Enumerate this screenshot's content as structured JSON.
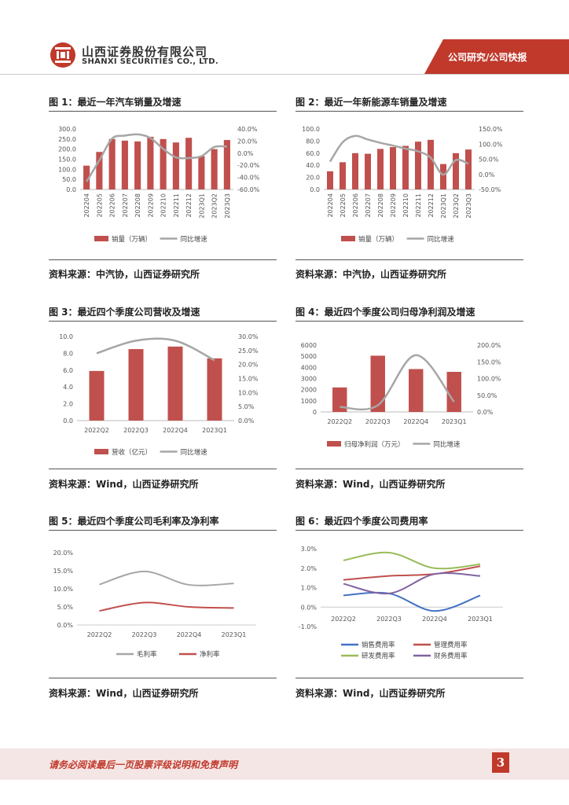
{
  "header": {
    "company_cn": "山西证券股份有限公司",
    "company_en": "SHANXI SECURITIES CO., LTD.",
    "tag": "公司研究/公司快报"
  },
  "figures": [
    {
      "title": "图 1：最近一年汽车销量及增速",
      "source": "资料来源：中汽协，山西证券研究所"
    },
    {
      "title": "图 2：最近一年新能源车销量及增速",
      "source": "资料来源：中汽协，山西证券研究所"
    },
    {
      "title": "图 3：最近四个季度公司营收及增速",
      "source": "资料来源：Wind，山西证券研究所"
    },
    {
      "title": "图 4：最近四个季度公司归母净利润及增速",
      "source": "资料来源：Wind，山西证券研究所"
    },
    {
      "title": "图 5：最近四个季度公司毛利率及净利率",
      "source": "资料来源：Wind，山西证券研究所"
    },
    {
      "title": "图 6：最近四个季度公司费用率",
      "source": "资料来源：Wind，山西证券研究所"
    }
  ],
  "footer": {
    "disclaimer": "请务必阅读最后一页股票评级说明和免责声明",
    "page": "3"
  },
  "colors": {
    "brand_red": "#c0392b",
    "bar": "#c0504d",
    "grey": "#a6a6a6",
    "blue": "#4472c4",
    "green": "#9bbb59",
    "purple": "#8064a2"
  },
  "chart_data": [
    {
      "type": "bar",
      "title": "最近一年汽车销量及增速",
      "categories": [
        "202204",
        "202205",
        "202206",
        "202207",
        "202208",
        "202209",
        "202210",
        "202211",
        "202212",
        "2023Q1",
        "2023Q2",
        "2023Q3"
      ],
      "series": [
        {
          "name": "销量（万辆）",
          "axis": "left",
          "values": [
            118,
            186,
            250,
            242,
            238,
            261,
            250,
            233,
            256,
            165,
            200,
            245
          ]
        },
        {
          "name": "同比增速",
          "axis": "right",
          "kind": "line",
          "values": [
            -47,
            -12,
            24,
            29,
            31,
            25,
            7,
            -7,
            -8,
            -5,
            10,
            11
          ]
        }
      ],
      "ylim_left": [
        0,
        300
      ],
      "yticks_left": [
        "300.0",
        "250.0",
        "200.0",
        "150.0",
        "100.0",
        "50.0",
        "0.0"
      ],
      "ylim_right": [
        -60,
        40
      ],
      "yticks_right": [
        "40.0%",
        "20.0%",
        "0.0%",
        "-20.0%",
        "-40.0%",
        "-60.0%"
      ]
    },
    {
      "type": "bar",
      "title": "最近一年新能源车销量及增速",
      "categories": [
        "202204",
        "202205",
        "202206",
        "202207",
        "202208",
        "202209",
        "202210",
        "202211",
        "202212",
        "2023Q1",
        "2023Q2",
        "2023Q3"
      ],
      "series": [
        {
          "name": "销量（万辆）",
          "axis": "left",
          "values": [
            30,
            45,
            60,
            59,
            67,
            70,
            72,
            79,
            82,
            42,
            60,
            66
          ]
        },
        {
          "name": "同比增速",
          "axis": "right",
          "kind": "line",
          "values": [
            42,
            106,
            127,
            115,
            104,
            95,
            85,
            76,
            55,
            -1,
            47,
            35
          ]
        }
      ],
      "ylim_left": [
        0,
        100
      ],
      "yticks_left": [
        "100.0",
        "80.0",
        "60.0",
        "40.0",
        "20.0",
        "0.0"
      ],
      "ylim_right": [
        -50,
        150
      ],
      "yticks_right": [
        "150.0%",
        "100.0%",
        "50.0%",
        "0.0%",
        "-50.0%"
      ]
    },
    {
      "type": "bar",
      "title": "最近四个季度公司营收及增速",
      "categories": [
        "2022Q2",
        "2022Q3",
        "2022Q4",
        "2023Q1"
      ],
      "series": [
        {
          "name": "营收（亿元）",
          "axis": "left",
          "values": [
            5.9,
            8.5,
            8.8,
            7.4
          ]
        },
        {
          "name": "同比增速",
          "axis": "right",
          "kind": "line",
          "values": [
            24,
            28.5,
            28.5,
            21.5
          ]
        }
      ],
      "ylim_left": [
        0,
        10
      ],
      "yticks_left": [
        "10.0",
        "8.0",
        "6.0",
        "4.0",
        "2.0",
        "0.0"
      ],
      "ylim_right": [
        0,
        30
      ],
      "yticks_right": [
        "30.0%",
        "25.0%",
        "20.0%",
        "15.0%",
        "10.0%",
        "5.0%",
        "0.0%"
      ]
    },
    {
      "type": "bar",
      "title": "最近四个季度公司归母净利润及增速",
      "categories": [
        "2022Q2",
        "2022Q3",
        "2022Q4",
        "2023Q1"
      ],
      "series": [
        {
          "name": "归母净利润（万元）",
          "axis": "left",
          "values": [
            2200,
            5050,
            3850,
            3600
          ]
        },
        {
          "name": "同比增速",
          "axis": "right",
          "kind": "line",
          "values": [
            15,
            20,
            170,
            30
          ]
        }
      ],
      "ylim_left": [
        0,
        6000
      ],
      "yticks_left": [
        "6000",
        "5000",
        "4000",
        "3000",
        "2000",
        "1000",
        "0"
      ],
      "ylim_right": [
        0,
        200
      ],
      "yticks_right": [
        "200.0%",
        "150.0%",
        "100.0%",
        "50.0%",
        "0.0%"
      ]
    },
    {
      "type": "line",
      "title": "最近四个季度公司毛利率及净利率",
      "categories": [
        "2022Q2",
        "2022Q3",
        "2022Q4",
        "2023Q1"
      ],
      "series": [
        {
          "name": "毛利率",
          "values": [
            11.2,
            14.8,
            11.1,
            11.5
          ]
        },
        {
          "name": "净利率",
          "values": [
            3.9,
            6.2,
            5.0,
            4.7
          ]
        }
      ],
      "ylim": [
        0,
        20
      ],
      "yticks": [
        "20.0%",
        "15.0%",
        "10.0%",
        "5.0%",
        "0.0%"
      ]
    },
    {
      "type": "line",
      "title": "最近四个季度公司费用率",
      "categories": [
        "2022Q2",
        "2022Q3",
        "2022Q4",
        "2023Q1"
      ],
      "series": [
        {
          "name": "销售费用率",
          "values": [
            0.6,
            0.7,
            -0.2,
            0.6
          ]
        },
        {
          "name": "管理费用率",
          "values": [
            1.4,
            1.6,
            1.7,
            2.1
          ]
        },
        {
          "name": "研发费用率",
          "values": [
            2.4,
            2.8,
            2.0,
            2.2
          ]
        },
        {
          "name": "财务费用率",
          "values": [
            1.2,
            0.7,
            1.7,
            1.6
          ]
        }
      ],
      "ylim": [
        -1,
        3
      ],
      "yticks": [
        "3.0%",
        "2.0%",
        "1.0%",
        "0.0%",
        "-1.0%"
      ]
    }
  ]
}
